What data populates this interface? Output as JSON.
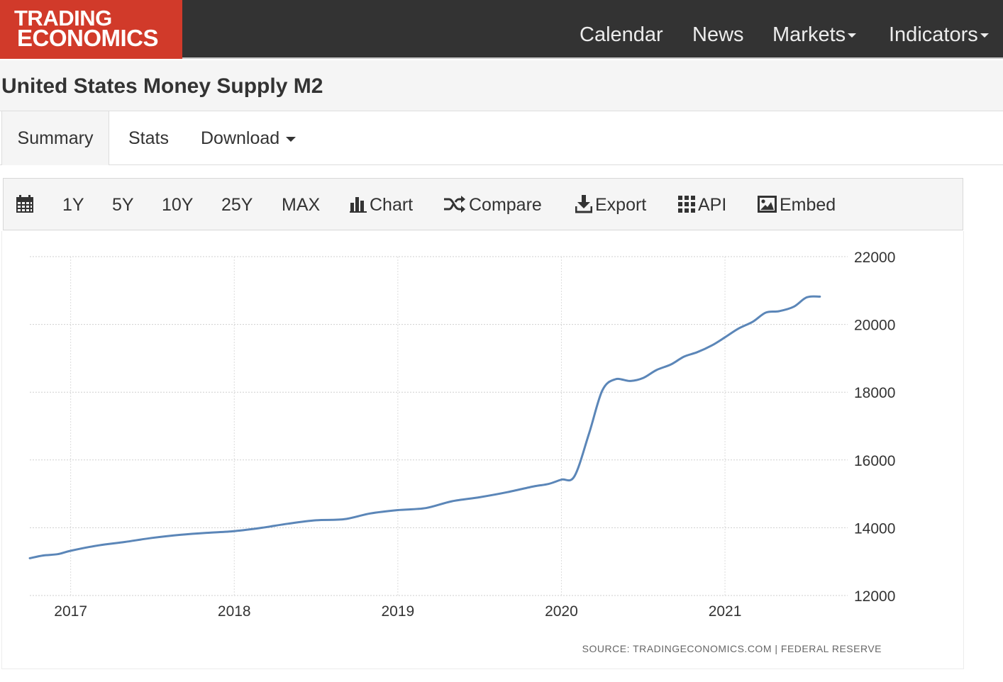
{
  "navbar": {
    "logo_line1": "TRADING",
    "logo_line2": "ECONOMICS",
    "items": [
      {
        "label": "Calendar"
      },
      {
        "label": "News"
      },
      {
        "label": "Markets"
      },
      {
        "label": "Indicators"
      }
    ]
  },
  "page": {
    "title": "United States Money Supply M2"
  },
  "tabs": [
    {
      "label": "Summary",
      "active": true
    },
    {
      "label": "Stats"
    },
    {
      "label": "Download"
    }
  ],
  "toolbar": {
    "calendar_icon": "calendar-icon",
    "ranges": [
      "1Y",
      "5Y",
      "10Y",
      "25Y",
      "MAX"
    ],
    "chart_label": "Chart",
    "compare_label": "Compare",
    "export_label": "Export",
    "api_label": "API",
    "embed_label": "Embed"
  },
  "chart_data": {
    "type": "line",
    "title": "",
    "xlabel": "",
    "ylabel": "",
    "x_ticks": [
      "2017",
      "2018",
      "2019",
      "2020",
      "2021"
    ],
    "y_ticks": [
      12000,
      14000,
      16000,
      18000,
      20000,
      22000
    ],
    "ylim": [
      12000,
      22000
    ],
    "xlim": [
      2016.75,
      2021.75
    ],
    "line_color": "#5b86b8",
    "grid": true,
    "source": "SOURCE: TRADINGECONOMICS.COM | FEDERAL RESERVE",
    "series": [
      {
        "x": [
          2016.75,
          2016.83,
          2016.92,
          2017.0,
          2017.17,
          2017.33,
          2017.5,
          2017.67,
          2017.83,
          2018.0,
          2018.17,
          2018.33,
          2018.5,
          2018.67,
          2018.83,
          2019.0,
          2019.17,
          2019.33,
          2019.5,
          2019.67,
          2019.83,
          2019.92,
          2020.0,
          2020.08,
          2020.17,
          2020.25,
          2020.33,
          2020.42,
          2020.5,
          2020.58,
          2020.67,
          2020.75,
          2020.83,
          2020.92,
          2021.0,
          2021.08,
          2021.17,
          2021.25,
          2021.33,
          2021.42,
          2021.5,
          2021.58
        ],
        "values": [
          13100,
          13180,
          13220,
          13320,
          13480,
          13580,
          13700,
          13790,
          13850,
          13900,
          14000,
          14120,
          14220,
          14250,
          14420,
          14520,
          14580,
          14780,
          14900,
          15050,
          15220,
          15290,
          15420,
          15520,
          16800,
          18050,
          18380,
          18330,
          18420,
          18650,
          18820,
          19050,
          19180,
          19380,
          19620,
          19870,
          20080,
          20350,
          20390,
          20520,
          20800,
          20820
        ]
      }
    ]
  }
}
